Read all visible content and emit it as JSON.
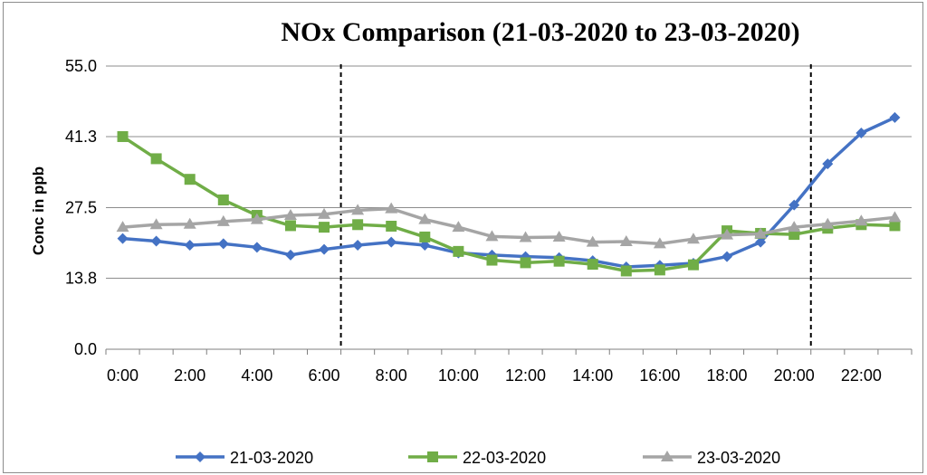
{
  "chart_data": {
    "type": "line",
    "title": "NOx Comparison (21-03-2020 to 23-03-2020)",
    "xlabel": "",
    "ylabel": "Conc in ppb",
    "x": [
      "0:00",
      "1:00",
      "2:00",
      "3:00",
      "4:00",
      "5:00",
      "6:00",
      "7:00",
      "8:00",
      "9:00",
      "10:00",
      "11:00",
      "12:00",
      "13:00",
      "14:00",
      "15:00",
      "16:00",
      "17:00",
      "18:00",
      "19:00",
      "20:00",
      "21:00",
      "22:00",
      "23:00"
    ],
    "x_tick_labels": [
      "0:00",
      "2:00",
      "4:00",
      "6:00",
      "8:00",
      "10:00",
      "12:00",
      "14:00",
      "16:00",
      "18:00",
      "20:00",
      "22:00"
    ],
    "y_ticks": [
      "0.0",
      "13.8",
      "27.5",
      "41.3",
      "55.0"
    ],
    "ylim": [
      0,
      55
    ],
    "grid": "horizontal",
    "legend": "bottom",
    "vertical_markers": [
      6.5,
      20.5
    ],
    "series": [
      {
        "name": "21-03-2020",
        "color": "#4472c4",
        "marker": "diamond",
        "values": [
          21.5,
          21.0,
          20.2,
          20.5,
          19.8,
          18.3,
          19.4,
          20.2,
          20.8,
          20.2,
          18.7,
          18.3,
          18.0,
          17.8,
          17.2,
          16.0,
          16.3,
          16.7,
          18.0,
          20.8,
          28.0,
          36.0,
          42.0,
          45.0
        ]
      },
      {
        "name": "22-03-2020",
        "color": "#70ad47",
        "marker": "square",
        "values": [
          41.3,
          37.0,
          33.0,
          29.0,
          26.0,
          24.0,
          23.7,
          24.2,
          23.9,
          21.8,
          19.0,
          17.3,
          16.8,
          17.1,
          16.5,
          15.2,
          15.4,
          16.4,
          23.0,
          22.5,
          22.3,
          23.5,
          24.2,
          24.0
        ]
      },
      {
        "name": "23-03-2020",
        "color": "#a5a5a5",
        "marker": "triangle",
        "values": [
          23.7,
          24.2,
          24.3,
          24.8,
          25.2,
          26.0,
          26.2,
          27.0,
          27.3,
          25.2,
          23.7,
          21.9,
          21.7,
          21.8,
          20.8,
          20.9,
          20.5,
          21.4,
          22.2,
          22.4,
          23.7,
          24.3,
          24.9,
          25.6
        ]
      }
    ]
  }
}
